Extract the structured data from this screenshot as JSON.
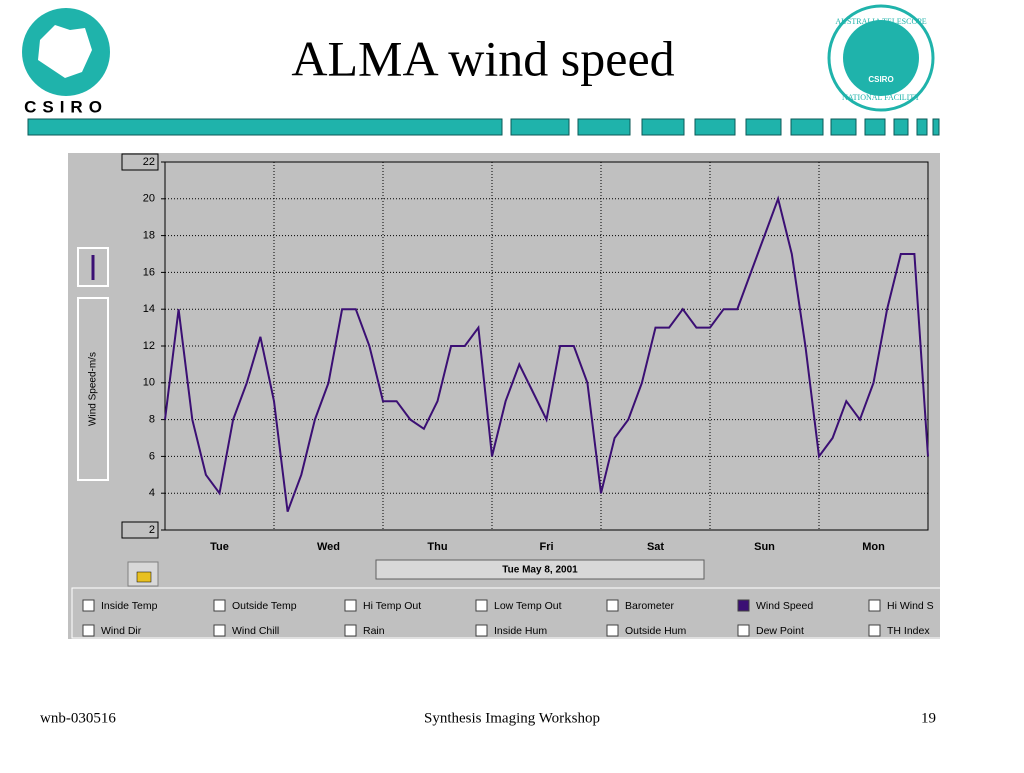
{
  "header": {
    "title": "ALMA wind speed",
    "logo_left": "CSIRO",
    "logo_right_top": "AUSTRALIA TELESCOPE",
    "logo_right_bottom": "NATIONAL FACILITY",
    "logo_right_center": "CSIRO"
  },
  "chart_data": {
    "type": "line",
    "y_label": "Wind Speed-m/s",
    "date_label": "Tue May 8, 2001",
    "categories": [
      null,
      null,
      null,
      null,
      "Tue",
      null,
      null,
      null,
      null,
      null,
      null,
      null,
      "Wed",
      null,
      null,
      null,
      null,
      null,
      null,
      null,
      "Thu",
      null,
      null,
      null,
      null,
      null,
      null,
      null,
      "Fri",
      null,
      null,
      null,
      null,
      null,
      null,
      null,
      "Sat",
      null,
      null,
      null,
      null,
      null,
      null,
      null,
      "Sun",
      null,
      null,
      null,
      null,
      null,
      null,
      null,
      "Mon",
      null,
      null,
      null,
      null
    ],
    "series": [
      {
        "name": "Wind Speed",
        "color": "#3b0f74",
        "values": [
          8,
          14,
          8,
          5,
          4,
          8,
          10,
          12.5,
          9,
          3,
          5,
          8,
          10,
          14,
          14,
          12,
          9,
          9,
          8,
          7.5,
          9,
          12,
          12,
          13,
          6,
          9,
          11,
          9.5,
          8,
          12,
          12,
          10,
          4,
          7,
          8,
          10,
          13,
          13,
          14,
          13,
          13,
          14,
          14,
          16,
          18,
          20,
          17,
          12,
          6,
          7,
          9,
          8,
          10,
          14,
          17,
          17,
          6
        ]
      }
    ],
    "ylim": [
      2,
      22
    ],
    "yticks": [
      2,
      4,
      6,
      8,
      10,
      12,
      14,
      16,
      18,
      20,
      22
    ],
    "grid": true,
    "checkboxes": [
      [
        {
          "label": "Inside Temp",
          "checked": false
        },
        {
          "label": "Outside Temp",
          "checked": false
        },
        {
          "label": "Hi Temp Out",
          "checked": false
        },
        {
          "label": "Low Temp Out",
          "checked": false
        },
        {
          "label": "Barometer",
          "checked": false
        },
        {
          "label": "Wind Speed",
          "checked": true
        },
        {
          "label": "Hi Wind S",
          "checked": false
        }
      ],
      [
        {
          "label": "Wind Dir",
          "checked": false
        },
        {
          "label": "Wind Chill",
          "checked": false
        },
        {
          "label": "Rain",
          "checked": false
        },
        {
          "label": "Inside Hum",
          "checked": false
        },
        {
          "label": "Outside Hum",
          "checked": false
        },
        {
          "label": "Dew Point",
          "checked": false
        },
        {
          "label": "TH Index",
          "checked": false
        }
      ]
    ]
  },
  "footer": {
    "left": "wnb-030516",
    "center": "Synthesis Imaging Workshop",
    "right": "19"
  }
}
